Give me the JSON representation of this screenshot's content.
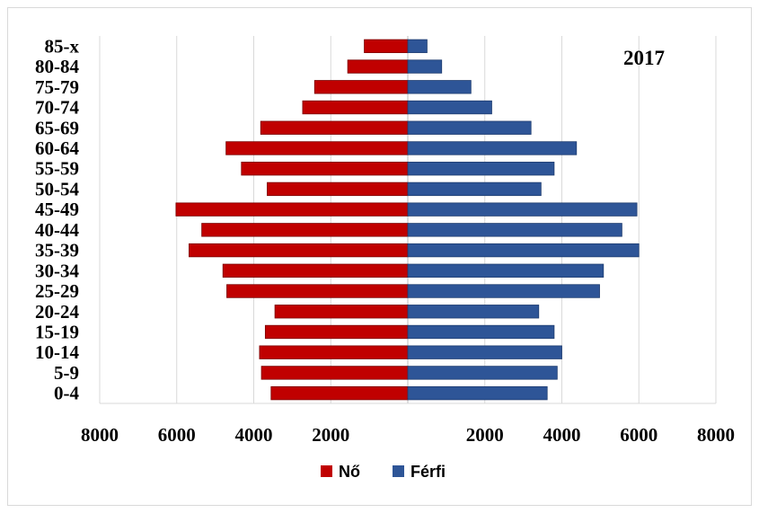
{
  "chart_data": {
    "type": "bar",
    "orientation": "horizontal",
    "title": "2017",
    "xlabel": "",
    "ylabel": "",
    "categories": [
      "0-4",
      "5-9",
      "10-14",
      "15-19",
      "20-24",
      "25-29",
      "30-34",
      "35-39",
      "40-44",
      "45-49",
      "50-54",
      "55-59",
      "60-64",
      "65-69",
      "70-74",
      "75-79",
      "80-84",
      "85-x"
    ],
    "series": [
      {
        "name": "Nő",
        "color": "#c00000",
        "side": "left",
        "values": [
          3550,
          3800,
          3850,
          3700,
          3450,
          4700,
          4800,
          5680,
          5350,
          6020,
          3650,
          4320,
          4720,
          3820,
          2730,
          2420,
          1560,
          1130
        ]
      },
      {
        "name": "Férfi",
        "color": "#2e5597",
        "side": "right",
        "values": [
          3620,
          3880,
          4000,
          3800,
          3400,
          4980,
          5080,
          6000,
          5560,
          5950,
          3460,
          3800,
          4380,
          3200,
          2180,
          1640,
          880,
          500
        ]
      }
    ],
    "xlim": [
      -8000,
      8000
    ],
    "x_ticks": [
      -8000,
      -6000,
      -4000,
      -2000,
      2000,
      4000,
      6000,
      8000
    ],
    "x_tick_labels": [
      "8000",
      "6000",
      "4000",
      "2000",
      "2000",
      "4000",
      "6000",
      "8000"
    ],
    "grid": true,
    "legend_position": "bottom"
  }
}
